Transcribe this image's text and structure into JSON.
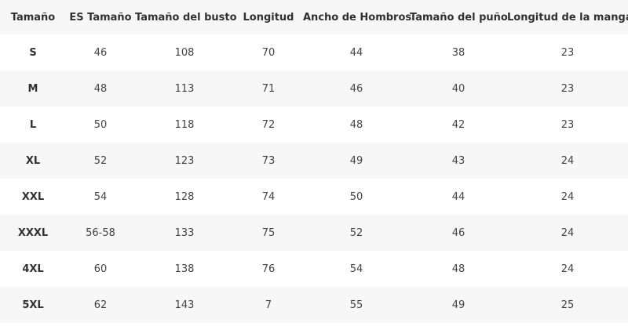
{
  "table": {
    "headers": [
      "Tamaño",
      "ES Tamaño",
      "Tamaño del busto",
      "Longitud",
      "Ancho de Hombros",
      "Tamaño del puño",
      "Longitud de la manga"
    ],
    "rows": [
      [
        "S",
        46,
        108,
        70,
        44,
        38,
        23
      ],
      [
        "M",
        48,
        113,
        71,
        46,
        40,
        23
      ],
      [
        "L",
        50,
        118,
        72,
        48,
        42,
        23
      ],
      [
        "XL",
        52,
        123,
        73,
        49,
        43,
        24
      ],
      [
        "XXL",
        54,
        128,
        74,
        50,
        44,
        24
      ],
      [
        "XXXL",
        "56-58",
        133,
        75,
        52,
        46,
        24
      ],
      [
        "4XL",
        60,
        138,
        76,
        54,
        48,
        24
      ],
      [
        "5XL",
        62,
        143,
        7,
        55,
        49,
        25
      ]
    ]
  }
}
